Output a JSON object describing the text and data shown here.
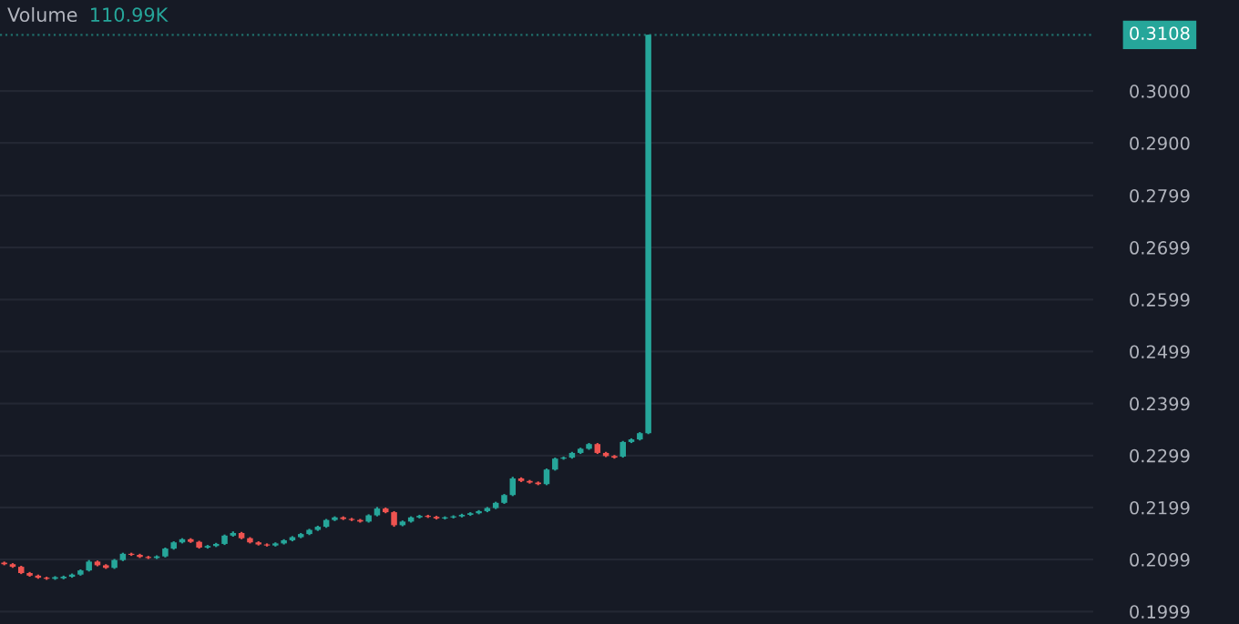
{
  "chart_data": {
    "type": "candlestick",
    "categories": [
      null,
      null,
      null,
      null,
      null,
      null,
      null,
      null,
      null,
      null,
      null,
      null,
      null,
      null,
      null,
      null,
      null,
      null,
      null,
      null,
      null,
      null,
      null,
      null,
      null,
      null,
      null,
      null,
      null,
      null,
      null,
      null,
      null,
      null,
      null,
      null,
      null,
      null,
      null,
      null,
      null,
      null,
      null,
      null,
      null,
      null,
      null,
      null,
      null,
      null,
      null,
      null,
      null,
      null,
      null,
      null,
      null,
      null,
      null,
      null,
      null,
      null,
      null,
      null,
      null,
      null,
      null,
      null,
      null,
      null,
      null,
      null,
      null,
      null,
      null,
      null,
      null,
      null,
      null,
      null,
      null,
      null,
      null,
      null,
      null,
      null,
      null,
      null,
      null,
      null,
      null,
      null,
      null,
      null,
      null,
      null,
      null,
      null,
      null,
      null,
      null,
      null,
      null,
      null,
      null,
      null,
      null,
      null,
      null,
      null,
      null,
      null,
      null,
      null,
      null,
      null,
      null,
      null,
      null,
      null,
      null,
      null,
      null,
      null,
      null,
      null,
      null,
      null,
      null
    ],
    "ohlc": [
      [
        0.2093,
        0.2095,
        0.2088,
        0.209
      ],
      [
        0.209,
        0.2092,
        0.2083,
        0.2085
      ],
      [
        0.2085,
        0.2087,
        0.2071,
        0.2073
      ],
      [
        0.2073,
        0.2075,
        0.2066,
        0.2068
      ],
      [
        0.2068,
        0.207,
        0.2062,
        0.2064
      ],
      [
        0.2064,
        0.2066,
        0.206,
        0.2062
      ],
      [
        0.2062,
        0.2067,
        0.206,
        0.2065
      ],
      [
        0.2063,
        0.2068,
        0.2061,
        0.2066
      ],
      [
        0.2066,
        0.2072,
        0.2064,
        0.207
      ],
      [
        0.207,
        0.208,
        0.2068,
        0.2078
      ],
      [
        0.2078,
        0.2098,
        0.2076,
        0.2095
      ],
      [
        0.2095,
        0.2097,
        0.2086,
        0.2088
      ],
      [
        0.2088,
        0.209,
        0.2081,
        0.2083
      ],
      [
        0.2083,
        0.21,
        0.2081,
        0.2098
      ],
      [
        0.2098,
        0.2112,
        0.2096,
        0.211
      ],
      [
        0.211,
        0.2112,
        0.2106,
        0.2108
      ],
      [
        0.2108,
        0.211,
        0.2102,
        0.2104
      ],
      [
        0.2104,
        0.2106,
        0.21,
        0.2102
      ],
      [
        0.2102,
        0.2107,
        0.21,
        0.2105
      ],
      [
        0.2105,
        0.2122,
        0.2103,
        0.212
      ],
      [
        0.212,
        0.2134,
        0.2118,
        0.2132
      ],
      [
        0.2132,
        0.214,
        0.213,
        0.2138
      ],
      [
        0.2138,
        0.214,
        0.2131,
        0.2133
      ],
      [
        0.2133,
        0.2135,
        0.212,
        0.2122
      ],
      [
        0.2122,
        0.2127,
        0.212,
        0.2125
      ],
      [
        0.2125,
        0.2131,
        0.2123,
        0.2129
      ],
      [
        0.2129,
        0.2147,
        0.2127,
        0.2145
      ],
      [
        0.2145,
        0.2153,
        0.2143,
        0.215
      ],
      [
        0.215,
        0.2152,
        0.2138,
        0.214
      ],
      [
        0.214,
        0.2142,
        0.213,
        0.2132
      ],
      [
        0.2132,
        0.2134,
        0.2126,
        0.2128
      ],
      [
        0.2128,
        0.213,
        0.2124,
        0.2126
      ],
      [
        0.2126,
        0.2132,
        0.2124,
        0.213
      ],
      [
        0.213,
        0.2138,
        0.2128,
        0.2136
      ],
      [
        0.2136,
        0.2144,
        0.2134,
        0.2142
      ],
      [
        0.2142,
        0.215,
        0.214,
        0.2148
      ],
      [
        0.2148,
        0.2158,
        0.2146,
        0.2156
      ],
      [
        0.2156,
        0.2164,
        0.2154,
        0.2162
      ],
      [
        0.2162,
        0.2177,
        0.216,
        0.2175
      ],
      [
        0.2175,
        0.2182,
        0.2173,
        0.218
      ],
      [
        0.218,
        0.2182,
        0.2175,
        0.2177
      ],
      [
        0.2177,
        0.2179,
        0.2173,
        0.2175
      ],
      [
        0.2175,
        0.2177,
        0.217,
        0.2172
      ],
      [
        0.2172,
        0.2186,
        0.217,
        0.2184
      ],
      [
        0.2184,
        0.22,
        0.2182,
        0.2197
      ],
      [
        0.2197,
        0.2199,
        0.2188,
        0.219
      ],
      [
        0.219,
        0.2192,
        0.2162,
        0.2165
      ],
      [
        0.2165,
        0.2174,
        0.2163,
        0.2172
      ],
      [
        0.2172,
        0.2182,
        0.217,
        0.218
      ],
      [
        0.218,
        0.2185,
        0.2178,
        0.2183
      ],
      [
        0.2183,
        0.2185,
        0.2179,
        0.2181
      ],
      [
        0.2181,
        0.2183,
        0.2176,
        0.2178
      ],
      [
        0.2178,
        0.2182,
        0.2176,
        0.218
      ],
      [
        0.218,
        0.2184,
        0.2178,
        0.2182
      ],
      [
        0.2182,
        0.2187,
        0.218,
        0.2185
      ],
      [
        0.2185,
        0.219,
        0.2183,
        0.2188
      ],
      [
        0.2188,
        0.2194,
        0.2186,
        0.2192
      ],
      [
        0.2192,
        0.22,
        0.219,
        0.2198
      ],
      [
        0.2198,
        0.221,
        0.2196,
        0.2208
      ],
      [
        0.2208,
        0.2225,
        0.2206,
        0.2223
      ],
      [
        0.2223,
        0.2258,
        0.2221,
        0.2255
      ],
      [
        0.2255,
        0.2257,
        0.2248,
        0.225
      ],
      [
        0.225,
        0.2252,
        0.2245,
        0.2247
      ],
      [
        0.2247,
        0.2249,
        0.2242,
        0.2244
      ],
      [
        0.2244,
        0.2274,
        0.2242,
        0.2272
      ],
      [
        0.2272,
        0.2295,
        0.227,
        0.2293
      ],
      [
        0.2293,
        0.2297,
        0.2291,
        0.2295
      ],
      [
        0.2295,
        0.2306,
        0.2293,
        0.2304
      ],
      [
        0.2304,
        0.2314,
        0.2302,
        0.2312
      ],
      [
        0.2312,
        0.2323,
        0.231,
        0.2321
      ],
      [
        0.2321,
        0.2323,
        0.2302,
        0.2304
      ],
      [
        0.2304,
        0.2306,
        0.2296,
        0.2298
      ],
      [
        0.2298,
        0.23,
        0.2293,
        0.2295
      ],
      [
        0.2297,
        0.2327,
        0.2295,
        0.2325
      ],
      [
        0.2325,
        0.2332,
        0.2323,
        0.233
      ],
      [
        0.233,
        0.2344,
        0.2328,
        0.2342
      ],
      [
        0.2342,
        0.3108,
        0.234,
        0.3108
      ],
      null,
      null,
      null,
      null,
      null,
      null,
      null,
      null,
      null,
      null,
      null,
      null,
      null,
      null,
      null,
      null,
      null,
      null,
      null,
      null,
      null,
      null,
      null,
      null,
      null,
      null,
      null,
      null,
      null,
      null,
      null,
      null,
      null,
      null,
      null,
      null,
      null,
      null,
      null,
      null,
      null,
      null,
      null,
      null,
      null,
      null,
      null,
      null,
      null,
      null,
      null,
      null
    ],
    "ylim": [
      0.1975,
      0.3175
    ],
    "yticks": [
      {
        "value": 0.3,
        "label": "0.3000"
      },
      {
        "value": 0.29,
        "label": "0.2900"
      },
      {
        "value": 0.2799,
        "label": "0.2799"
      },
      {
        "value": 0.2699,
        "label": "0.2699"
      },
      {
        "value": 0.2599,
        "label": "0.2599"
      },
      {
        "value": 0.2499,
        "label": "0.2499"
      },
      {
        "value": 0.2399,
        "label": "0.2399"
      },
      {
        "value": 0.2299,
        "label": "0.2299"
      },
      {
        "value": 0.2199,
        "label": "0.2199"
      },
      {
        "value": 0.2099,
        "label": "0.2099"
      },
      {
        "value": 0.1999,
        "label": "0.1999"
      }
    ],
    "annotations": [
      "Volume",
      "110.99K"
    ],
    "ref_lines": [
      {
        "axis": "y",
        "value": 0.3108,
        "label": "0.3108",
        "color": "#26a69a",
        "line_style": "dotted"
      }
    ],
    "grid": "y",
    "tick_labels": "y"
  }
}
